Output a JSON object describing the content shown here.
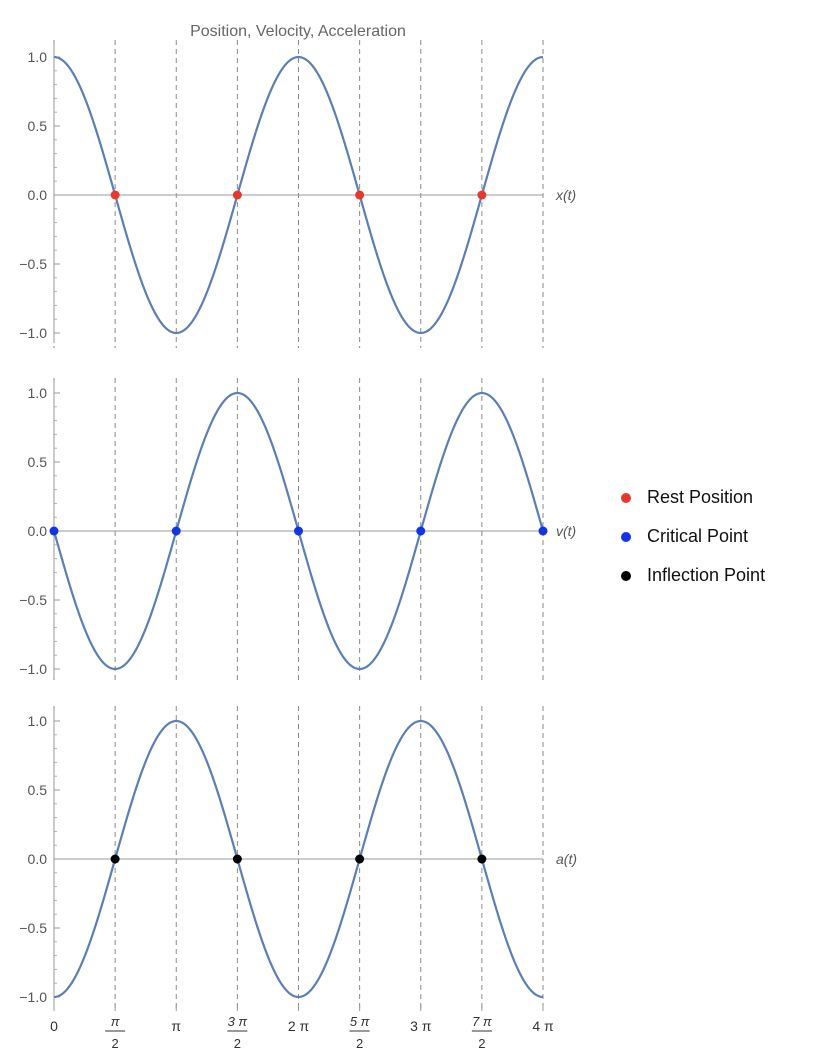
{
  "chart_data": {
    "type": "line",
    "title": "Position, Velocity, Acceleration",
    "curve_color": "#5b7fb4",
    "x_domain": [
      "0",
      "4π"
    ],
    "x_ticks": [
      {
        "value": 0,
        "label": "0",
        "frac": false
      },
      {
        "value": 1.5708,
        "num": "π",
        "den": "2",
        "frac": true
      },
      {
        "value": 3.1416,
        "label": "π",
        "frac": false
      },
      {
        "value": 4.7124,
        "num": "3 π",
        "den": "2",
        "frac": true
      },
      {
        "value": 6.2832,
        "label": "2 π",
        "frac": false
      },
      {
        "value": 7.854,
        "num": "5 π",
        "den": "2",
        "frac": true
      },
      {
        "value": 9.4248,
        "label": "3 π",
        "frac": false
      },
      {
        "value": 10.9956,
        "num": "7 π",
        "den": "2",
        "frac": true
      },
      {
        "value": 12.5664,
        "label": "4 π",
        "frac": false
      }
    ],
    "y_ticks": [
      "1.0",
      "0.5",
      "0.0",
      "−0.5",
      "−1.0"
    ],
    "y_tick_values": [
      1,
      0.5,
      0,
      -0.5,
      -1
    ],
    "ylim": [
      -1,
      1
    ],
    "panels": [
      {
        "name": "position",
        "function": "cos",
        "series_label": "x(t)",
        "marker_color": "#e8372b",
        "markers_x": [
          1.5708,
          4.7124,
          7.854,
          10.9956
        ],
        "markers_y": [
          0,
          0,
          0,
          0
        ]
      },
      {
        "name": "velocity",
        "function": "-sin",
        "series_label": "v(t)",
        "marker_color": "#1035e8",
        "markers_x": [
          0,
          3.1416,
          6.2832,
          9.4248,
          12.5664
        ],
        "markers_y": [
          0,
          0,
          0,
          0,
          0
        ]
      },
      {
        "name": "acceleration",
        "function": "-cos",
        "series_label": "a(t)",
        "marker_color": "#000000",
        "markers_x": [
          1.5708,
          4.7124,
          7.854,
          10.9956
        ],
        "markers_y": [
          0,
          0,
          0,
          0
        ]
      }
    ],
    "legend": {
      "placement": "right",
      "items": [
        {
          "label": "Rest Position",
          "color": "#e8372b"
        },
        {
          "label": "Critical Point",
          "color": "#1035e8"
        },
        {
          "label": "Inflection Point",
          "color": "#000000"
        }
      ]
    }
  }
}
